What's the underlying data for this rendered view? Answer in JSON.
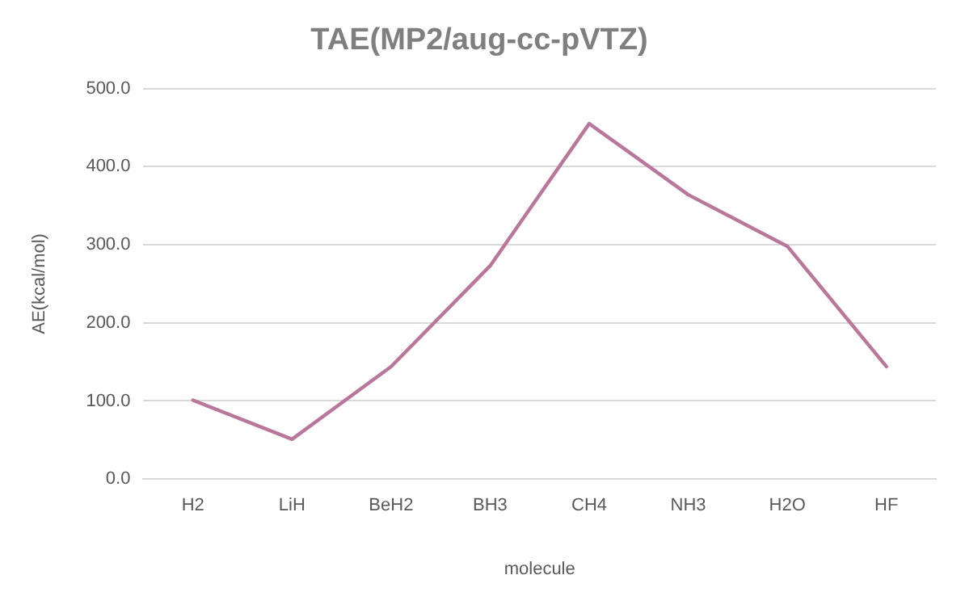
{
  "chart_data": {
    "type": "line",
    "title": "TAE(MP2/aug-cc-pVTZ)",
    "xlabel": "molecule",
    "ylabel": "AE(kcal/mol)",
    "categories": [
      "H2",
      "LiH",
      "BeH2",
      "BH3",
      "CH4",
      "NH3",
      "H2O",
      "HF"
    ],
    "series": [
      {
        "color": "#b9779c",
        "values": [
          101,
          51,
          144,
          273,
          455,
          364,
          298,
          144
        ]
      }
    ],
    "ylim": [
      0,
      500
    ],
    "yticks": [
      {
        "value": 0,
        "label": "0.0"
      },
      {
        "value": 100,
        "label": "100.0"
      },
      {
        "value": 200,
        "label": "200.0"
      },
      {
        "value": 300,
        "label": "300.0"
      },
      {
        "value": 400,
        "label": "400.0"
      },
      {
        "value": 500,
        "label": "500.0"
      }
    ],
    "grid": "y",
    "legend": false,
    "marker": "none",
    "line_style": "solid"
  }
}
